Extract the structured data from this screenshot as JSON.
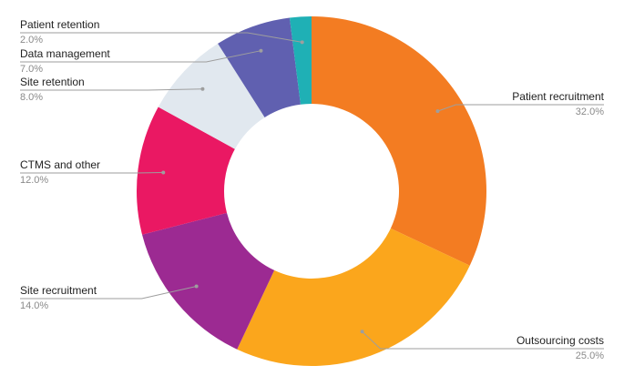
{
  "chart_data": {
    "type": "pie",
    "title": "",
    "donut": true,
    "slices": [
      {
        "label": "Patient recruitment",
        "pct_label": "32.0%",
        "value": 32.0,
        "color": "#f37c22"
      },
      {
        "label": "Outsourcing costs",
        "pct_label": "25.0%",
        "value": 25.0,
        "color": "#fba61c"
      },
      {
        "label": "Site recruitment",
        "pct_label": "14.0%",
        "value": 14.0,
        "color": "#9c2a92"
      },
      {
        "label": "CTMS and other",
        "pct_label": "12.0%",
        "value": 12.0,
        "color": "#ea1863"
      },
      {
        "label": "Site retention",
        "pct_label": "8.0%",
        "value": 8.0,
        "color": "#e1e8ef"
      },
      {
        "label": "Data management",
        "pct_label": "7.0%",
        "value": 7.0,
        "color": "#6060b0"
      },
      {
        "label": "Patient retention",
        "pct_label": "2.0%",
        "value": 2.0,
        "color": "#1fb0b5"
      }
    ]
  }
}
